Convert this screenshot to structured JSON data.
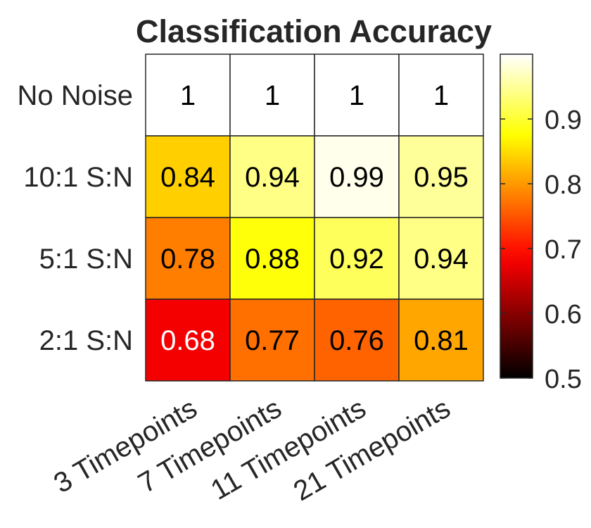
{
  "chart_data": {
    "type": "heatmap",
    "title": "Classification Accuracy",
    "rows": [
      "No Noise",
      "10:1 S:N",
      "5:1 S:N",
      "2:1 S:N"
    ],
    "columns": [
      "3 Timepoints",
      "7 Timepoints",
      "11 Timepoints",
      "21 Timepoints"
    ],
    "values": [
      [
        1,
        1,
        1,
        1
      ],
      [
        0.84,
        0.94,
        0.99,
        0.95
      ],
      [
        0.78,
        0.88,
        0.92,
        0.94
      ],
      [
        0.68,
        0.77,
        0.76,
        0.81
      ]
    ],
    "cell_labels": [
      [
        "1",
        "1",
        "1",
        "1"
      ],
      [
        "0.84",
        "0.94",
        "0.99",
        "0.95"
      ],
      [
        "0.78",
        "0.88",
        "0.92",
        "0.94"
      ],
      [
        "0.68",
        "0.77",
        "0.76",
        "0.81"
      ]
    ],
    "colormap": "hot",
    "colorbar": {
      "range": [
        0.5,
        1
      ],
      "ticks": [
        0.5,
        0.6,
        0.7,
        0.8,
        0.9
      ],
      "tick_labels": [
        "0.5",
        "0.6",
        "0.7",
        "0.8",
        "0.9"
      ],
      "placement": "right"
    }
  }
}
